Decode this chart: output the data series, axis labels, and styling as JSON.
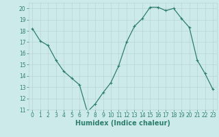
{
  "x": [
    0,
    1,
    2,
    3,
    4,
    5,
    6,
    7,
    8,
    9,
    10,
    11,
    12,
    13,
    14,
    15,
    16,
    17,
    18,
    19,
    20,
    21,
    22,
    23
  ],
  "y": [
    18.2,
    17.1,
    16.7,
    15.4,
    14.4,
    13.8,
    13.2,
    10.8,
    11.5,
    12.5,
    13.4,
    14.9,
    17.0,
    18.4,
    19.1,
    20.1,
    20.1,
    19.8,
    20.0,
    19.1,
    18.3,
    15.4,
    14.2,
    12.8
  ],
  "line_color": "#2d7d6e",
  "marker": "+",
  "marker_size": 3,
  "linewidth": 0.9,
  "xlabel": "Humidex (Indice chaleur)",
  "xlabel_fontsize": 7,
  "ylim": [
    11,
    20.5
  ],
  "xlim": [
    -0.5,
    23.5
  ],
  "yticks": [
    11,
    12,
    13,
    14,
    15,
    16,
    17,
    18,
    19,
    20
  ],
  "xticks": [
    0,
    1,
    2,
    3,
    4,
    5,
    6,
    7,
    8,
    9,
    10,
    11,
    12,
    13,
    14,
    15,
    16,
    17,
    18,
    19,
    20,
    21,
    22,
    23
  ],
  "bg_color": "#cceaea",
  "grid_color": "#b8d4d4",
  "tick_color": "#2d7d6e",
  "label_color": "#2d7d6e",
  "tick_fontsize": 5.5
}
